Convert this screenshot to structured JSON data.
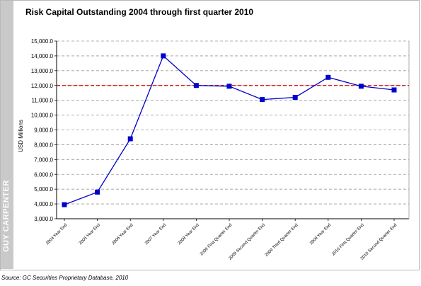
{
  "title": "Risk Capital Outstanding 2004 through first quarter 2010",
  "source": "Source: GC Securities Proprietary Database, 2010",
  "brand": "GUY CARPENTER",
  "colors": {
    "line": "#0000cc",
    "marker": "#0000cc",
    "reference_line": "#e00000",
    "grid": "#9a9a9a",
    "sidebar": "#c9c9c9"
  },
  "chart_data": {
    "type": "line",
    "title": "Risk Capital Outstanding 2004 through first quarter 2010",
    "ylabel": "USD Millions",
    "xlabel": "",
    "ylim": [
      3000,
      15000
    ],
    "yticks": [
      "3,000.0",
      "4,000.0",
      "5,000.0",
      "6,000.0",
      "7,000.0",
      "8,000.0",
      "9,000.0",
      "10,000.0",
      "11,000.0",
      "12,000.0",
      "13,000.0",
      "14,000.0",
      "15,000.0"
    ],
    "ytick_values": [
      3000,
      4000,
      5000,
      6000,
      7000,
      8000,
      9000,
      10000,
      11000,
      12000,
      13000,
      14000,
      15000
    ],
    "grid": "horizontal dashed",
    "categories": [
      "2004 Year End",
      "2005 Year End",
      "2006 Year End",
      "2007 Year End",
      "2008 Year End",
      "2009 First Quarter End",
      "2009 Second Quarter End",
      "2009 Third Quarter End",
      "2009 Year End",
      "2010 First Quarter End",
      "2010 Second Quarter End"
    ],
    "series": [
      {
        "values": [
          3950,
          4800,
          8400,
          14000,
          12000,
          11950,
          11050,
          11200,
          12550,
          11950,
          11700
        ]
      }
    ],
    "reference_line": {
      "value": 12000,
      "style": "dashed"
    }
  }
}
